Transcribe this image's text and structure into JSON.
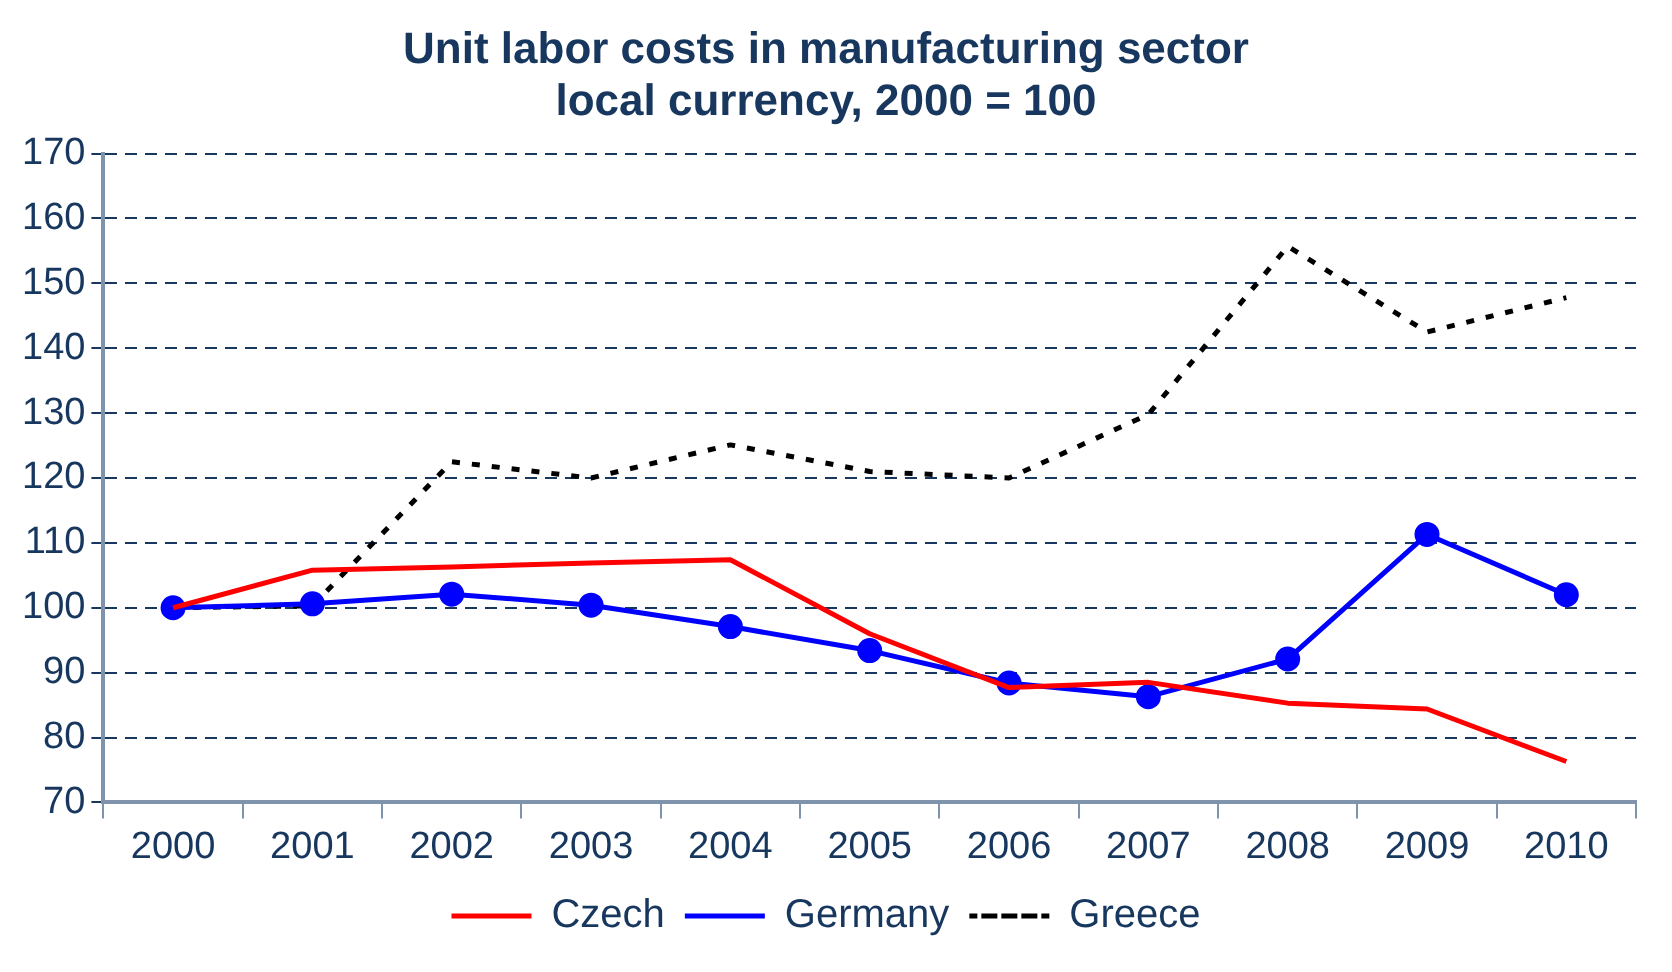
{
  "chart_data": {
    "type": "line",
    "title": "Unit labor costs in manufacturing sector\nlocal currency, 2000 = 100",
    "categories": [
      "2000",
      "2001",
      "2002",
      "2003",
      "2004",
      "2005",
      "2006",
      "2007",
      "2008",
      "2009",
      "2010"
    ],
    "series": [
      {
        "name": "Czech",
        "color": "#ff0000",
        "marker": "none",
        "line_style": "solid",
        "values": [
          100,
          105.8,
          106.3,
          106.9,
          107.4,
          96,
          87.7,
          88.5,
          85.3,
          84.4,
          76.3
        ]
      },
      {
        "name": "Germany",
        "color": "#0000ff",
        "marker": "circle",
        "line_style": "solid",
        "values": [
          100,
          100.6,
          102.1,
          100.4,
          97.1,
          93.4,
          88.4,
          86.3,
          92.1,
          111.3,
          102
        ]
      },
      {
        "name": "Greece",
        "color": "#000000",
        "marker": "none",
        "line_style": "dashed",
        "values": [
          100,
          100.3,
          122.5,
          120,
          125.1,
          121,
          120,
          129.8,
          155.7,
          142.5,
          147.8
        ]
      }
    ],
    "ylim": [
      70,
      170
    ],
    "yticks": [
      70,
      80,
      90,
      100,
      110,
      120,
      130,
      140,
      150,
      160,
      170
    ],
    "grid": "y",
    "legend": "bottom"
  }
}
